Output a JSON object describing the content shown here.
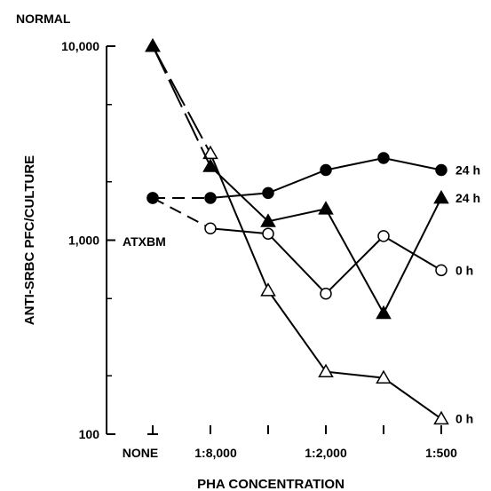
{
  "chart_data": {
    "type": "line",
    "xlabel": "PHA CONCENTRATION",
    "ylabel": "ANTI-SRBC PFC/CULTURE",
    "yscale": "log",
    "ylim": [
      100,
      10000
    ],
    "y_ticks": [
      {
        "value": 10000,
        "label": "10,000"
      },
      {
        "value": 1000,
        "label": "1,000"
      },
      {
        "value": 100,
        "label": "100"
      }
    ],
    "x_positions": 6,
    "x_tick_labels": [
      {
        "index": 0,
        "label": "NONE"
      },
      {
        "index": 1,
        "label": "1:8,000"
      },
      {
        "index": 3,
        "label": "1:2,000"
      },
      {
        "index": 5,
        "label": "1:500"
      }
    ],
    "group_labels": [
      {
        "text": "NORMAL",
        "group": "normal"
      },
      {
        "text": "ATXBM",
        "group": "atxbm"
      }
    ],
    "series": [
      {
        "group": "normal",
        "marker": "open-triangle",
        "end_label": "0 h",
        "values": [
          10000,
          2800,
          550,
          210,
          195,
          120
        ]
      },
      {
        "group": "normal",
        "marker": "filled-triangle",
        "end_label": "24 h",
        "values": [
          10000,
          2400,
          1250,
          1450,
          420,
          1650
        ]
      },
      {
        "group": "atxbm",
        "marker": "open-circle",
        "end_label": "0 h",
        "values": [
          1650,
          1150,
          1080,
          530,
          1050,
          700
        ]
      },
      {
        "group": "atxbm",
        "marker": "filled-circle",
        "end_label": "24 h",
        "values": [
          1650,
          1650,
          1750,
          2300,
          2650,
          2300
        ]
      }
    ],
    "grid": false
  }
}
